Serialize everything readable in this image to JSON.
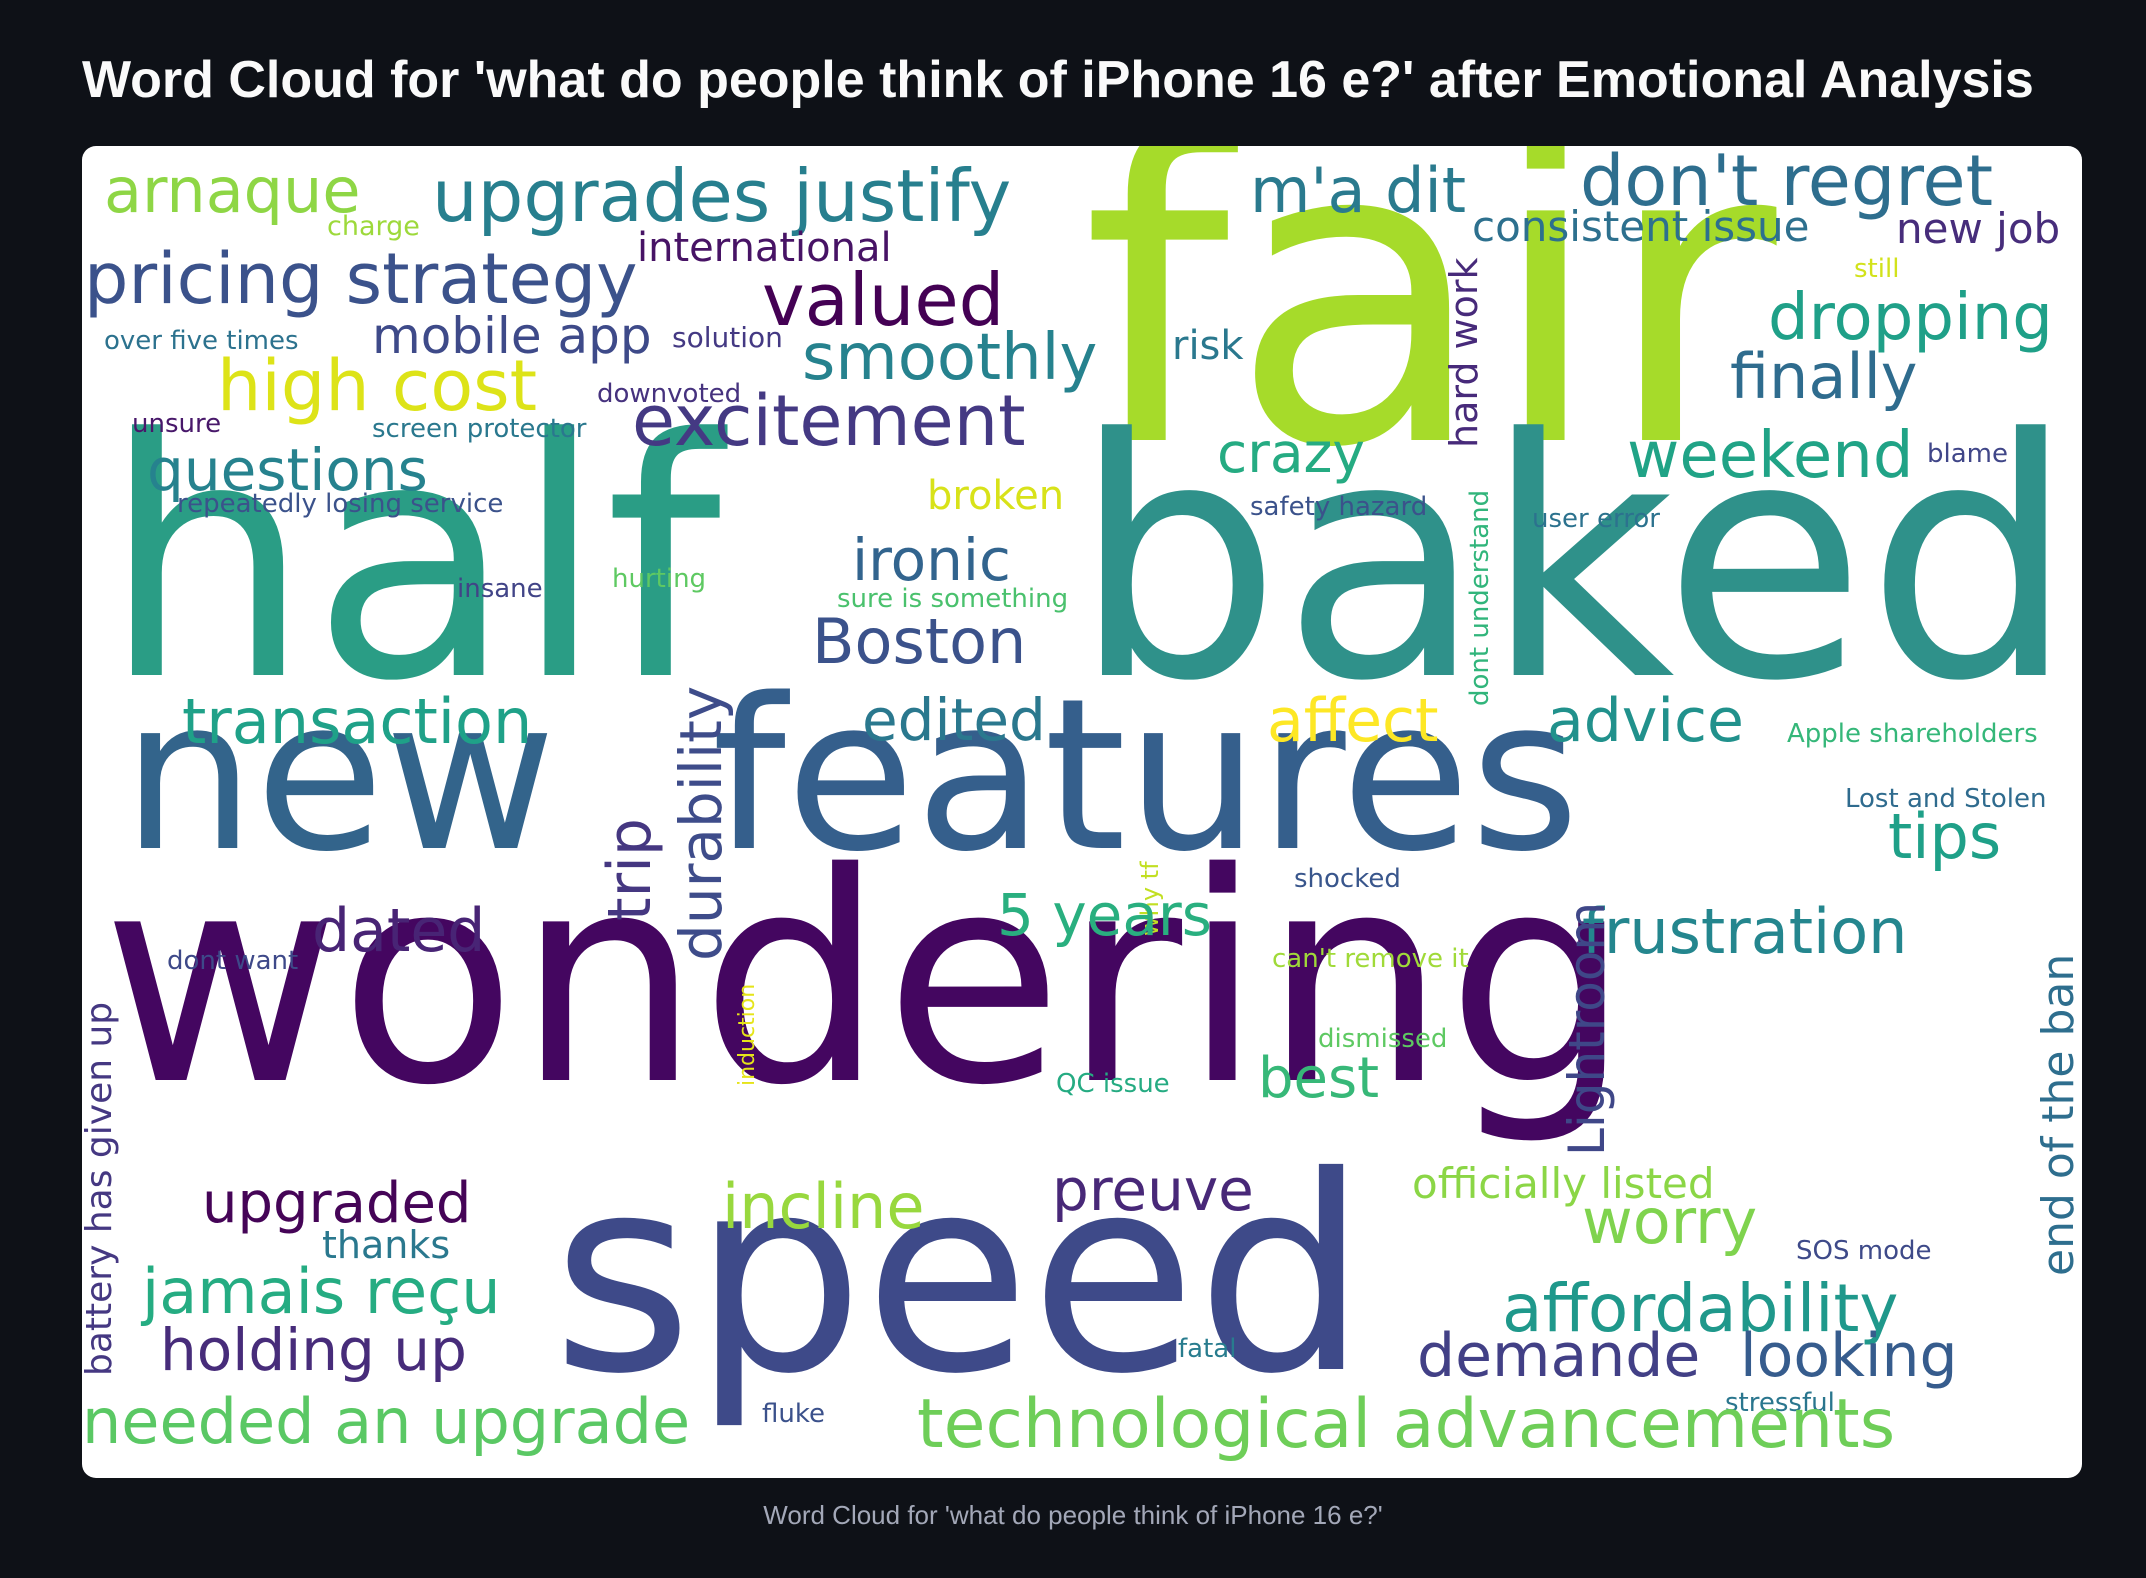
{
  "page": {
    "title": "Word Cloud for 'what do people think of iPhone 16 e?' after Emotional Analysis",
    "caption": "Word Cloud for 'what do people think of iPhone 16 e?'"
  },
  "chart_data": {
    "type": "word_cloud",
    "colormap": "viridis",
    "background": "#ffffff",
    "words": [
      {
        "text": "fair",
        "color": "#a6db2a"
      },
      {
        "text": "half",
        "color": "#2a9d85"
      },
      {
        "text": "baked",
        "color": "#2f918a"
      },
      {
        "text": "new",
        "color": "#33648b"
      },
      {
        "text": "features",
        "color": "#355f8c"
      },
      {
        "text": "wondering",
        "color": "#440660"
      },
      {
        "text": "speed",
        "color": "#3e4a89"
      },
      {
        "text": "arnaque",
        "color": "#8ed645"
      },
      {
        "text": "upgrades justify",
        "color": "#277f8e"
      },
      {
        "text": "m'a dit",
        "color": "#2a7a8e"
      },
      {
        "text": "don't regret",
        "color": "#2e6e8e"
      },
      {
        "text": "charge",
        "color": "#9dd93b"
      },
      {
        "text": "international",
        "color": "#471365"
      },
      {
        "text": "consistent issue",
        "color": "#2d708e"
      },
      {
        "text": "new job",
        "color": "#472d7b"
      },
      {
        "text": "pricing strategy",
        "color": "#3b528b"
      },
      {
        "text": "valued",
        "color": "#440154"
      },
      {
        "text": "still",
        "color": "#d2e21b"
      },
      {
        "text": "over five times",
        "color": "#2c728e"
      },
      {
        "text": "mobile app",
        "color": "#3e4a89"
      },
      {
        "text": "solution",
        "color": "#443983"
      },
      {
        "text": "smoothly",
        "color": "#26828e"
      },
      {
        "text": "risk",
        "color": "#2a788e"
      },
      {
        "text": "hard work",
        "color": "#472a7a"
      },
      {
        "text": "dropping",
        "color": "#1fa088"
      },
      {
        "text": "high cost",
        "color": "#dde318"
      },
      {
        "text": "downvoted",
        "color": "#46327e"
      },
      {
        "text": "finally",
        "color": "#2f6c8e"
      },
      {
        "text": "unsure",
        "color": "#48186a"
      },
      {
        "text": "screen protector",
        "color": "#2a788e"
      },
      {
        "text": "excitement",
        "color": "#443983"
      },
      {
        "text": "crazy",
        "color": "#25ab82"
      },
      {
        "text": "blame",
        "color": "#404688"
      },
      {
        "text": "questions",
        "color": "#26828e"
      },
      {
        "text": "weekend",
        "color": "#20a386"
      },
      {
        "text": "repeatedly losing service",
        "color": "#3b528b"
      },
      {
        "text": "broken",
        "color": "#d8e219"
      },
      {
        "text": "safety hazard",
        "color": "#3b528b"
      },
      {
        "text": "user error",
        "color": "#2c728e"
      },
      {
        "text": "dont understand",
        "color": "#31b57b"
      },
      {
        "text": "insane",
        "color": "#414487"
      },
      {
        "text": "hurting",
        "color": "#5ec962"
      },
      {
        "text": "ironic",
        "color": "#32648e"
      },
      {
        "text": "sure is something",
        "color": "#4ac16d"
      },
      {
        "text": "Boston",
        "color": "#3b528b"
      },
      {
        "text": "durability",
        "color": "#3e4c8a"
      },
      {
        "text": "transaction",
        "color": "#1fa188"
      },
      {
        "text": "edited",
        "color": "#2a788e"
      },
      {
        "text": "affect",
        "color": "#fde725"
      },
      {
        "text": "advice",
        "color": "#21918c"
      },
      {
        "text": "Apple shareholders",
        "color": "#35b779"
      },
      {
        "text": "trip",
        "color": "#453781"
      },
      {
        "text": "why tf",
        "color": "#c2df23"
      },
      {
        "text": "Lost and Stolen",
        "color": "#2f6b8e"
      },
      {
        "text": "tips",
        "color": "#1fa088"
      },
      {
        "text": "battery has given up",
        "color": "#453882"
      },
      {
        "text": "shocked",
        "color": "#39568c"
      },
      {
        "text": "end of the ban",
        "color": "#2e6e8e"
      },
      {
        "text": "dated",
        "color": "#482475"
      },
      {
        "text": "5 years",
        "color": "#29af7f"
      },
      {
        "text": "frustration",
        "color": "#24868e"
      },
      {
        "text": "dont want",
        "color": "#3e4989"
      },
      {
        "text": "can't remove it",
        "color": "#a0da39"
      },
      {
        "text": "Lightroom",
        "color": "#3f4788"
      },
      {
        "text": "induction",
        "color": "#e5e419"
      },
      {
        "text": "dismissed",
        "color": "#5ec962"
      },
      {
        "text": "QC issue",
        "color": "#25ab82"
      },
      {
        "text": "best",
        "color": "#37b878"
      },
      {
        "text": "upgraded",
        "color": "#450457"
      },
      {
        "text": "incline",
        "color": "#98d83e"
      },
      {
        "text": "preuve",
        "color": "#482878"
      },
      {
        "text": "officially listed",
        "color": "#8bd646"
      },
      {
        "text": "thanks",
        "color": "#2a788e"
      },
      {
        "text": "worry",
        "color": "#7fd34e"
      },
      {
        "text": "SOS mode",
        "color": "#3e4a89"
      },
      {
        "text": "jamais reçu",
        "color": "#25ac82"
      },
      {
        "text": "affordability",
        "color": "#1f988b"
      },
      {
        "text": "holding up",
        "color": "#472c7a"
      },
      {
        "text": "fatal",
        "color": "#287c8e"
      },
      {
        "text": "demande",
        "color": "#424086"
      },
      {
        "text": "looking",
        "color": "#365c8d"
      },
      {
        "text": "stressful",
        "color": "#2a768e"
      },
      {
        "text": "fluke",
        "color": "#3b518b"
      },
      {
        "text": "needed an upgrade",
        "color": "#5ac864"
      },
      {
        "text": "technological advancements",
        "color": "#6ece58"
      }
    ]
  }
}
